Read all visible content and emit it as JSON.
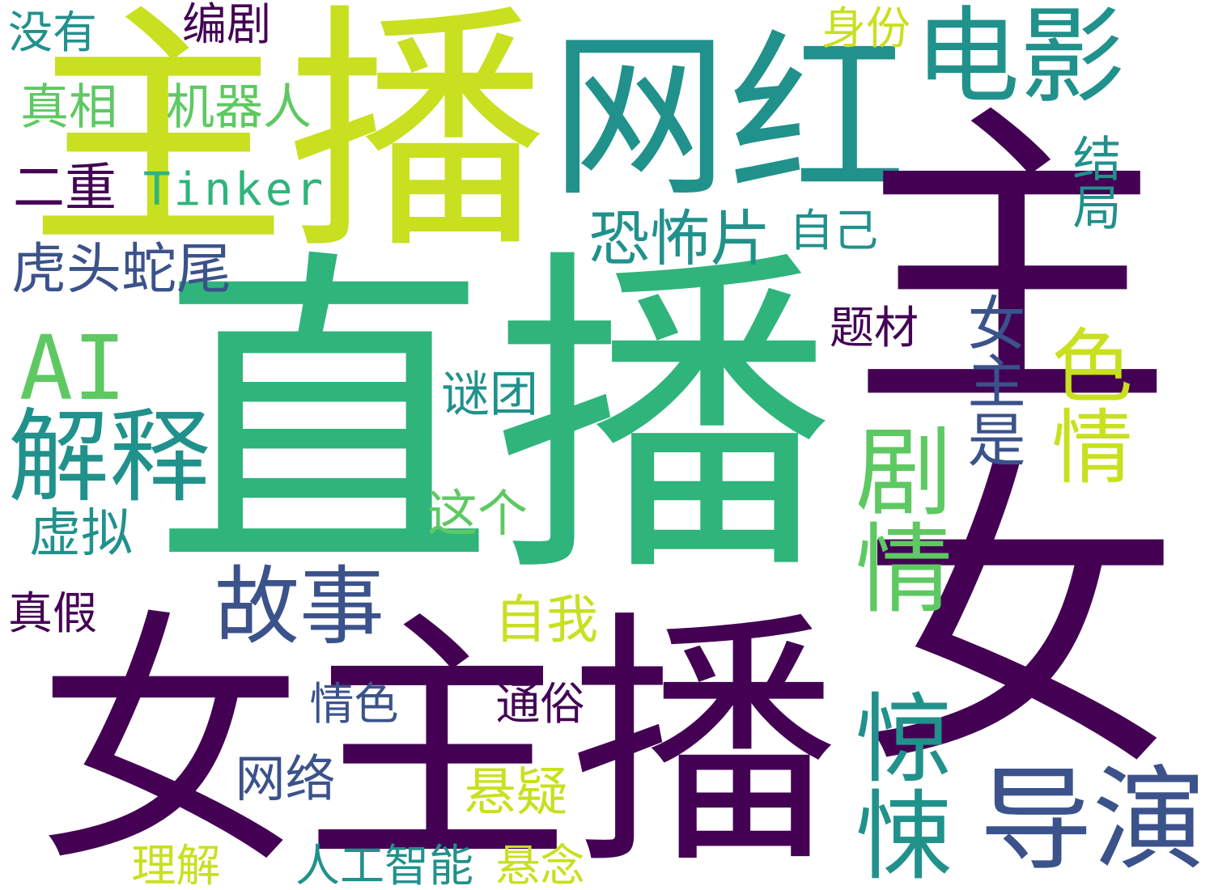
{
  "palette": {
    "c1": "#440154",
    "c2": "#3b528b",
    "c3": "#21918c",
    "c4": "#2fb47c",
    "c5": "#5ec962",
    "c6": "#c8e020"
  },
  "words": [
    {
      "text": "直播",
      "color": "#2fb47c"
    },
    {
      "text": "女主播",
      "color": "#440154"
    },
    {
      "text": "主播",
      "color": "#c8e020"
    },
    {
      "text": "网红",
      "color": "#21918c"
    },
    {
      "text": "电影",
      "color": "#21918c"
    },
    {
      "text": "主",
      "color": "#440154"
    },
    {
      "text": "女",
      "color": "#440154"
    },
    {
      "text": "AI",
      "color": "#5ec962"
    },
    {
      "text": "解释",
      "color": "#21918c"
    },
    {
      "text": "故事",
      "color": "#3b528b"
    },
    {
      "text": "剧情",
      "color": "#5ec962"
    },
    {
      "text": "惊悚",
      "color": "#21918c"
    },
    {
      "text": "导演",
      "color": "#3b528b"
    },
    {
      "text": "色情",
      "color": "#c8e020"
    },
    {
      "text": "女主是",
      "color": "#3b528b"
    },
    {
      "text": "恐怖片",
      "color": "#21918c"
    },
    {
      "text": "虎头蛇尾",
      "color": "#3b528b"
    },
    {
      "text": "Tinker",
      "color": "#2fb47c"
    },
    {
      "text": "机器人",
      "color": "#5ec962"
    },
    {
      "text": "真相",
      "color": "#5ec962"
    },
    {
      "text": "没有",
      "color": "#21918c"
    },
    {
      "text": "编剧",
      "color": "#440154"
    },
    {
      "text": "身份",
      "color": "#c8e020"
    },
    {
      "text": "二重",
      "color": "#440154"
    },
    {
      "text": "结局",
      "color": "#21918c"
    },
    {
      "text": "自己",
      "color": "#21918c"
    },
    {
      "text": "题材",
      "color": "#440154"
    },
    {
      "text": "谜团",
      "color": "#21918c"
    },
    {
      "text": "这个",
      "color": "#5ec962"
    },
    {
      "text": "虚拟",
      "color": "#21918c"
    },
    {
      "text": "自我",
      "color": "#c8e020"
    },
    {
      "text": "真假",
      "color": "#440154"
    },
    {
      "text": "情色",
      "color": "#3b528b"
    },
    {
      "text": "通俗",
      "color": "#440154"
    },
    {
      "text": "网络",
      "color": "#3b528b"
    },
    {
      "text": "悬疑",
      "color": "#c8e020"
    },
    {
      "text": "理解",
      "color": "#c8e020"
    },
    {
      "text": "人工智能",
      "color": "#21918c"
    },
    {
      "text": "悬念",
      "color": "#c8e020"
    }
  ]
}
